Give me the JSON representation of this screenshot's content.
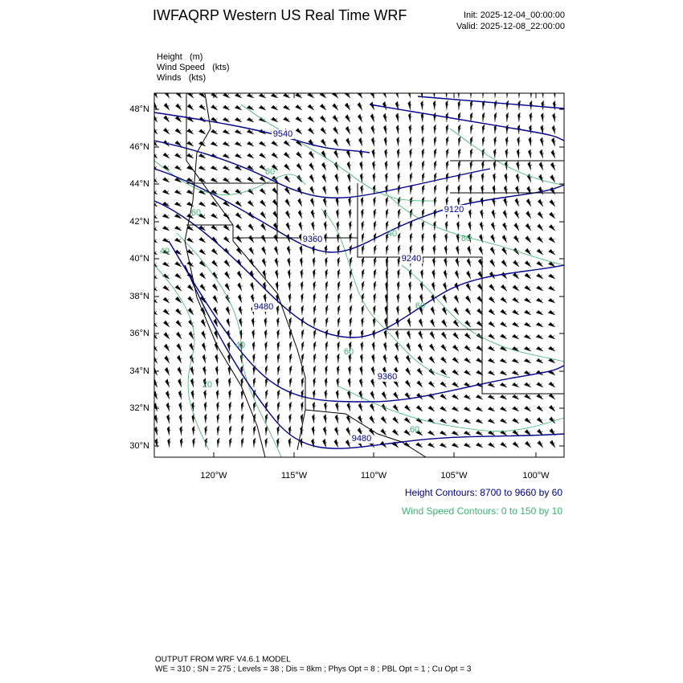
{
  "header": {
    "title": "IWFAQRP Western US Real Time WRF",
    "init": "Init: 2025-12-04_00:00:00",
    "valid": "Valid: 2025-12-08_22:00:00"
  },
  "fields": [
    "Height   (m)",
    "Wind Speed   (kts)",
    "Winds   (kts)"
  ],
  "map": {
    "lat_labels": [
      "48°N",
      "46°N",
      "44°N",
      "42°N",
      "40°N",
      "38°N",
      "36°N",
      "34°N",
      "32°N",
      "30°N"
    ],
    "lon_labels": [
      "120°W",
      "115°W",
      "110°W",
      "105°W",
      "100°W"
    ],
    "height_labels": [
      "9540",
      "9120",
      "9360",
      "9240",
      "9480",
      "9360",
      "9480"
    ],
    "speed_labels": [
      "60",
      "40",
      "40",
      "20",
      "60",
      "40",
      "60",
      "80",
      "60",
      "60"
    ]
  },
  "contour_info": {
    "height": "Height Contours: 8700 to 9660 by 60",
    "speed": "Wind Speed Contours: 0 to 150 by 10"
  },
  "footer": {
    "line1": "OUTPUT FROM WRF V4.6.1 MODEL",
    "line2": "WE = 310 ; SN = 275 ; Levels = 38 ; Dis = 8km ; Phys Opt = 8 ; PBL Opt = 1 ; Cu Opt = 3"
  }
}
